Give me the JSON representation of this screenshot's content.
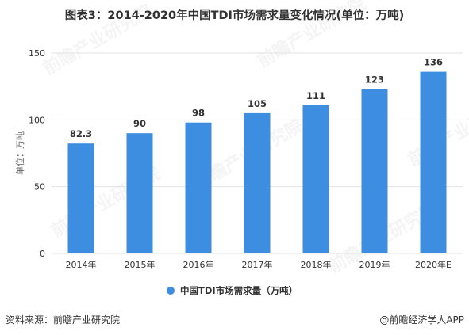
{
  "title": "图表3：2014-2020年中国TDI市场需求量变化情况(单位：万吨)",
  "watermark": "前瞻产业研究院",
  "footer": {
    "source": "资料来源：前瞻产业研究院",
    "credit": "@前瞻经济学人APP"
  },
  "colors": {
    "bar": "#3d8ee0",
    "grid": "#e3e3e3",
    "text": "#333333",
    "axis_label": "#666666"
  },
  "chart_data": {
    "type": "bar",
    "categories": [
      "2014年",
      "2015年",
      "2016年",
      "2017年",
      "2018年",
      "2019年",
      "2020年E"
    ],
    "series": [
      {
        "name": "中国TDI市场需求量（万吨）",
        "values": [
          82.3,
          90,
          98,
          105,
          111,
          123,
          136
        ]
      }
    ],
    "data_labels": [
      "82.3",
      "90",
      "98",
      "105",
      "111",
      "123",
      "136"
    ],
    "xlabel": "",
    "ylabel": "单位：万吨",
    "ylim": [
      0,
      150
    ],
    "yticks": [
      0,
      50,
      100,
      150
    ],
    "grid": true,
    "legend_position": "bottom"
  }
}
